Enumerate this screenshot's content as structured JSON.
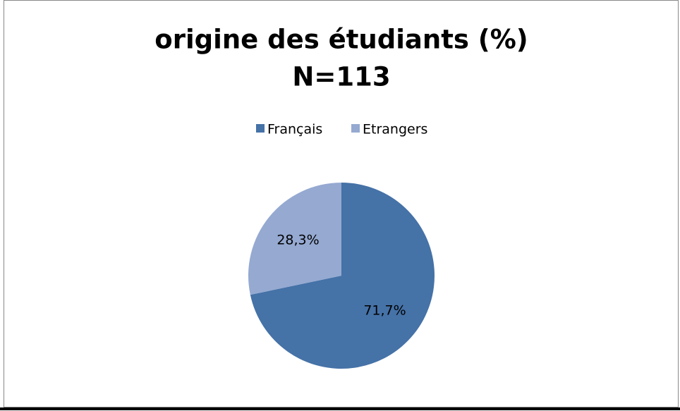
{
  "chart_data": {
    "type": "pie",
    "title": "origine des étudiants (%)",
    "subtitle": "N=113",
    "categories": [
      "Français",
      "Etrangers"
    ],
    "values": [
      71.7,
      28.3
    ],
    "value_labels": [
      "71,7%",
      "28,3%"
    ],
    "colors": [
      "#4572A7",
      "#95A9D1"
    ],
    "legend": "top"
  }
}
